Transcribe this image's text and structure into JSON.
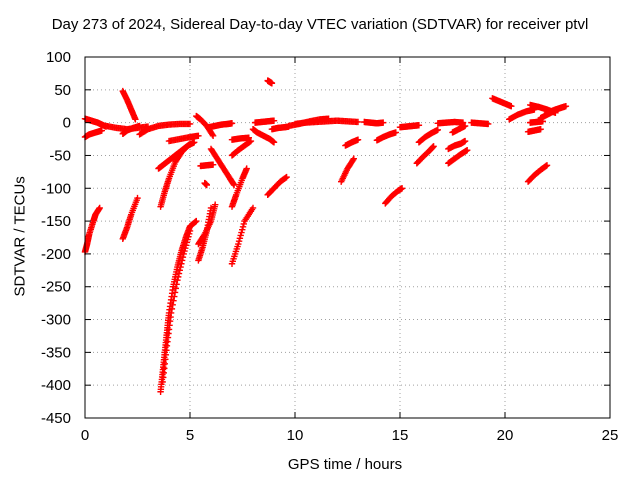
{
  "chart_data": {
    "type": "scatter",
    "title": "Day 273 of 2024, Sidereal Day-to-day VTEC variation (SDTVAR) for receiver ptvl",
    "xlabel": "GPS time / hours",
    "ylabel": "SDTVAR / TECUs",
    "xlim": [
      0,
      25
    ],
    "ylim": [
      -450,
      100
    ],
    "xticks": [
      0,
      5,
      10,
      15,
      20,
      25
    ],
    "yticks": [
      100,
      50,
      0,
      -50,
      -100,
      -150,
      -200,
      -250,
      -300,
      -350,
      -400,
      -450
    ],
    "grid": true,
    "marker": "+",
    "color": "#ff0000",
    "series": [
      {
        "x": [
          0.0,
          0.2,
          0.4,
          0.6,
          0.8,
          1.0
        ],
        "y": [
          6,
          4,
          2,
          0,
          -3,
          -6
        ]
      },
      {
        "x": [
          0.0,
          0.2,
          0.5,
          0.8
        ],
        "y": [
          -22,
          -18,
          -15,
          -12
        ]
      },
      {
        "x": [
          0.0,
          0.1,
          0.2,
          0.4,
          0.5,
          0.7
        ],
        "y": [
          -197,
          -185,
          -170,
          -150,
          -140,
          -130
        ]
      },
      {
        "x": [
          1.0,
          1.5,
          2.0,
          2.5,
          3.0
        ],
        "y": [
          -5,
          -8,
          -10,
          -8,
          -6
        ]
      },
      {
        "x": [
          1.8,
          2.0,
          2.2,
          2.4
        ],
        "y": [
          48,
          35,
          20,
          5
        ]
      },
      {
        "x": [
          1.8,
          2.0,
          2.3,
          2.6
        ],
        "y": [
          -17,
          -12,
          -8,
          -5
        ]
      },
      {
        "x": [
          1.8,
          2.0,
          2.2,
          2.5
        ],
        "y": [
          -177,
          -160,
          -140,
          -115
        ]
      },
      {
        "x": [
          2.6,
          3.0,
          3.5,
          4.0,
          4.5,
          5.0
        ],
        "y": [
          -18,
          -10,
          -5,
          -3,
          -2,
          -2
        ]
      },
      {
        "x": [
          3.5,
          3.7,
          3.9,
          4.1,
          4.3,
          4.5,
          4.7,
          4.9,
          5.2
        ],
        "y": [
          -70,
          -65,
          -60,
          -55,
          -50,
          -45,
          -40,
          -35,
          -30
        ]
      },
      {
        "x": [
          3.6,
          3.8,
          4.0,
          4.3,
          4.6,
          5.0
        ],
        "y": [
          -128,
          -105,
          -85,
          -60,
          -45,
          -32
        ]
      },
      {
        "x": [
          3.6,
          3.7,
          3.8,
          3.9,
          4.0,
          4.2,
          4.4,
          4.6,
          4.8,
          5.0,
          5.3
        ],
        "y": [
          -410,
          -380,
          -350,
          -320,
          -290,
          -250,
          -220,
          -195,
          -175,
          -158,
          -150
        ]
      },
      {
        "x": [
          3.7,
          3.9,
          4.1,
          4.4,
          4.7,
          5.0
        ],
        "y": [
          -395,
          -340,
          -290,
          -240,
          -200,
          -165
        ]
      },
      {
        "x": [
          4.0,
          4.5,
          5.0,
          5.4
        ],
        "y": [
          -28,
          -25,
          -22,
          -20
        ]
      },
      {
        "x": [
          5.3,
          5.5,
          5.8,
          6.1
        ],
        "y": [
          10,
          5,
          -5,
          -20
        ]
      },
      {
        "x": [
          5.4,
          5.6,
          5.8,
          6.0
        ],
        "y": [
          -210,
          -190,
          -165,
          -130
        ]
      },
      {
        "x": [
          5.4,
          5.7,
          6.0,
          6.2
        ],
        "y": [
          -185,
          -170,
          -150,
          -125
        ]
      },
      {
        "x": [
          5.5,
          5.8,
          6.1
        ],
        "y": [
          -66,
          -65,
          -64
        ]
      },
      {
        "x": [
          6.0,
          6.3,
          6.6,
          6.9,
          7.1
        ],
        "y": [
          -40,
          -55,
          -70,
          -85,
          -95
        ]
      },
      {
        "x": [
          5.9,
          6.2,
          6.5,
          6.8,
          7.0
        ],
        "y": [
          -7,
          -5,
          -3,
          -2,
          -1
        ]
      },
      {
        "x": [
          5.7,
          5.8
        ],
        "y": [
          -92,
          -95
        ]
      },
      {
        "x": [
          7.0,
          7.3,
          7.6,
          8.0
        ],
        "y": [
          -215,
          -185,
          -150,
          -130
        ]
      },
      {
        "x": [
          7.0,
          7.2,
          7.5,
          7.7
        ],
        "y": [
          -128,
          -110,
          -85,
          -70
        ]
      },
      {
        "x": [
          7.0,
          7.3,
          7.6,
          7.9
        ],
        "y": [
          -50,
          -42,
          -35,
          -28
        ]
      },
      {
        "x": [
          7.0,
          7.4,
          7.8
        ],
        "y": [
          -26,
          -24,
          -23
        ]
      },
      {
        "x": [
          8.0,
          8.2,
          8.5,
          8.8,
          9.0
        ],
        "y": [
          -10,
          -15,
          -20,
          -25,
          -30
        ]
      },
      {
        "x": [
          8.1,
          8.4,
          8.7,
          9.0
        ],
        "y": [
          0,
          1,
          2,
          3
        ]
      },
      {
        "x": [
          8.7,
          8.8,
          8.9
        ],
        "y": [
          64,
          62,
          60
        ]
      },
      {
        "x": [
          8.7,
          9.0,
          9.3,
          9.6
        ],
        "y": [
          -110,
          -100,
          -90,
          -83
        ]
      },
      {
        "x": [
          8.9,
          9.2,
          9.5,
          9.7
        ],
        "y": [
          -10,
          -8,
          -7,
          -6
        ]
      },
      {
        "x": [
          9.7,
          10.2,
          10.7,
          11.2,
          11.6
        ],
        "y": [
          -5,
          -2,
          2,
          5,
          6
        ]
      },
      {
        "x": [
          10.0,
          10.5,
          11.0,
          11.5,
          12.0,
          12.5,
          13.0
        ],
        "y": [
          -2,
          0,
          1,
          2,
          3,
          2,
          1
        ]
      },
      {
        "x": [
          12.2,
          12.5,
          12.8
        ],
        "y": [
          -90,
          -70,
          -55
        ]
      },
      {
        "x": [
          12.4,
          12.7,
          13.0
        ],
        "y": [
          -35,
          -30,
          -26
        ]
      },
      {
        "x": [
          13.3,
          13.6,
          13.9,
          14.2
        ],
        "y": [
          1,
          0,
          -1,
          0
        ]
      },
      {
        "x": [
          13.9,
          14.2,
          14.5,
          14.8
        ],
        "y": [
          -27,
          -22,
          -18,
          -15
        ]
      },
      {
        "x": [
          14.3,
          14.6,
          14.9,
          15.1
        ],
        "y": [
          -123,
          -112,
          -104,
          -100
        ]
      },
      {
        "x": [
          15.0,
          15.3,
          15.6,
          15.9
        ],
        "y": [
          -7,
          -6,
          -5,
          -4
        ]
      },
      {
        "x": [
          15.8,
          16.1,
          16.4,
          16.6
        ],
        "y": [
          -62,
          -52,
          -43,
          -36
        ]
      },
      {
        "x": [
          15.9,
          16.2,
          16.5,
          16.8
        ],
        "y": [
          -30,
          -22,
          -16,
          -11
        ]
      },
      {
        "x": [
          16.8,
          17.2,
          17.6,
          18.0
        ],
        "y": [
          -1,
          0,
          1,
          0
        ]
      },
      {
        "x": [
          17.3,
          17.6,
          17.9,
          18.2
        ],
        "y": [
          -62,
          -55,
          -48,
          -42
        ]
      },
      {
        "x": [
          17.3,
          17.6,
          17.9,
          18.1
        ],
        "y": [
          -40,
          -35,
          -32,
          -28
        ]
      },
      {
        "x": [
          17.5,
          17.8,
          18.1
        ],
        "y": [
          -15,
          -10,
          -5
        ]
      },
      {
        "x": [
          18.4,
          18.8,
          19.2
        ],
        "y": [
          0,
          -1,
          -2
        ]
      },
      {
        "x": [
          19.4,
          19.7,
          20.0,
          20.3
        ],
        "y": [
          37,
          33,
          29,
          25
        ]
      },
      {
        "x": [
          20.2,
          20.6,
          21.0,
          21.4
        ],
        "y": [
          5,
          12,
          17,
          20
        ]
      },
      {
        "x": [
          21.1,
          21.4,
          21.7,
          22.0
        ],
        "y": [
          -90,
          -80,
          -72,
          -65
        ]
      },
      {
        "x": [
          21.1,
          21.4,
          21.7
        ],
        "y": [
          -14,
          -12,
          -10
        ]
      },
      {
        "x": [
          21.2,
          21.5,
          21.8
        ],
        "y": [
          0,
          1,
          2
        ]
      },
      {
        "x": [
          21.2,
          21.6,
          22.0,
          22.4
        ],
        "y": [
          27,
          24,
          20,
          15
        ]
      },
      {
        "x": [
          21.7,
          22.0,
          22.3,
          22.6,
          22.9
        ],
        "y": [
          7,
          12,
          17,
          22,
          25
        ]
      },
      {
        "x": [
          22.0,
          22.4,
          22.8
        ],
        "y": [
          15,
          20,
          24
        ]
      }
    ]
  }
}
